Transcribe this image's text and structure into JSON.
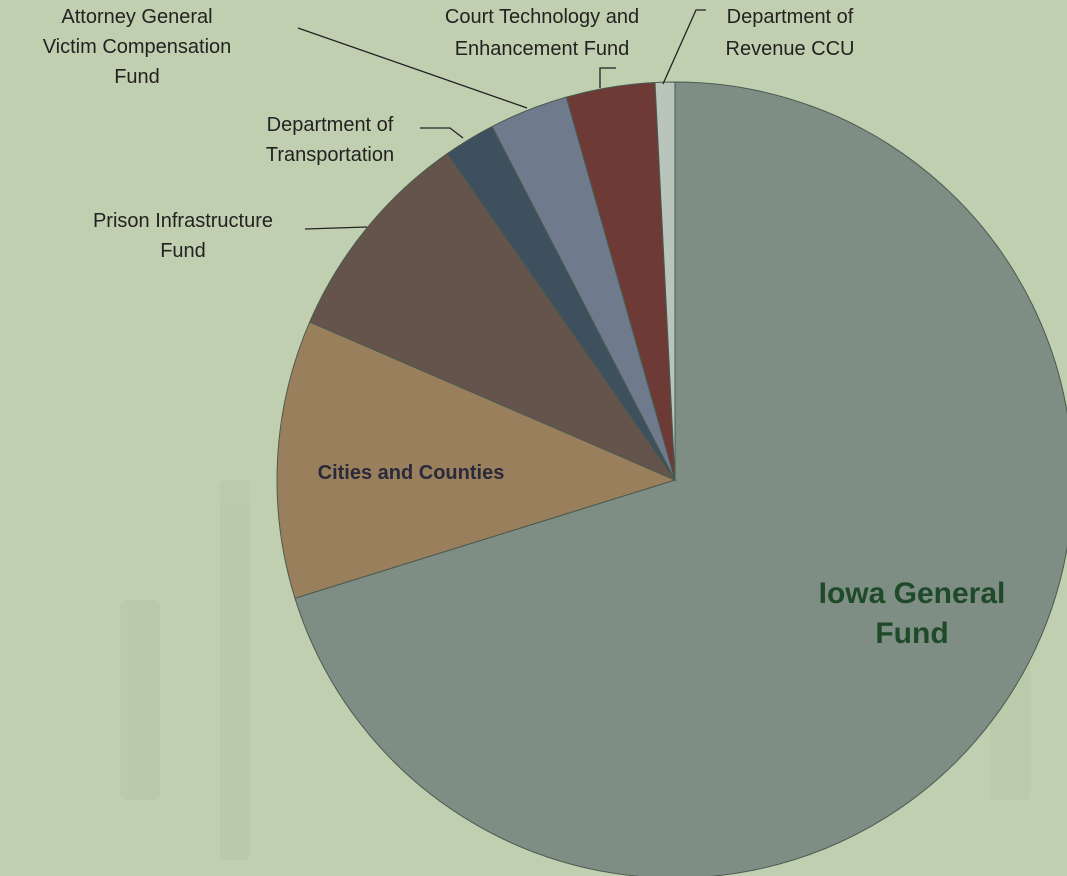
{
  "chart_data": {
    "type": "pie",
    "categories": [
      "Iowa General Fund",
      "Cities and Counties",
      "Prison Infrastructure Fund",
      "Department of Transportation",
      "Attorney General Victim Compensation Fund",
      "Court Technology and Enhancement Fund",
      "Department of Revenue CCU"
    ],
    "values": [
      70.2,
      11.3,
      8.8,
      2.1,
      3.2,
      3.6,
      0.8
    ],
    "colors": [
      "#7f8e84",
      "#9a7f5c",
      "#65544b",
      "#3e4f5e",
      "#6f7b8c",
      "#6e3a36",
      "#b9c4bb"
    ]
  }
}
